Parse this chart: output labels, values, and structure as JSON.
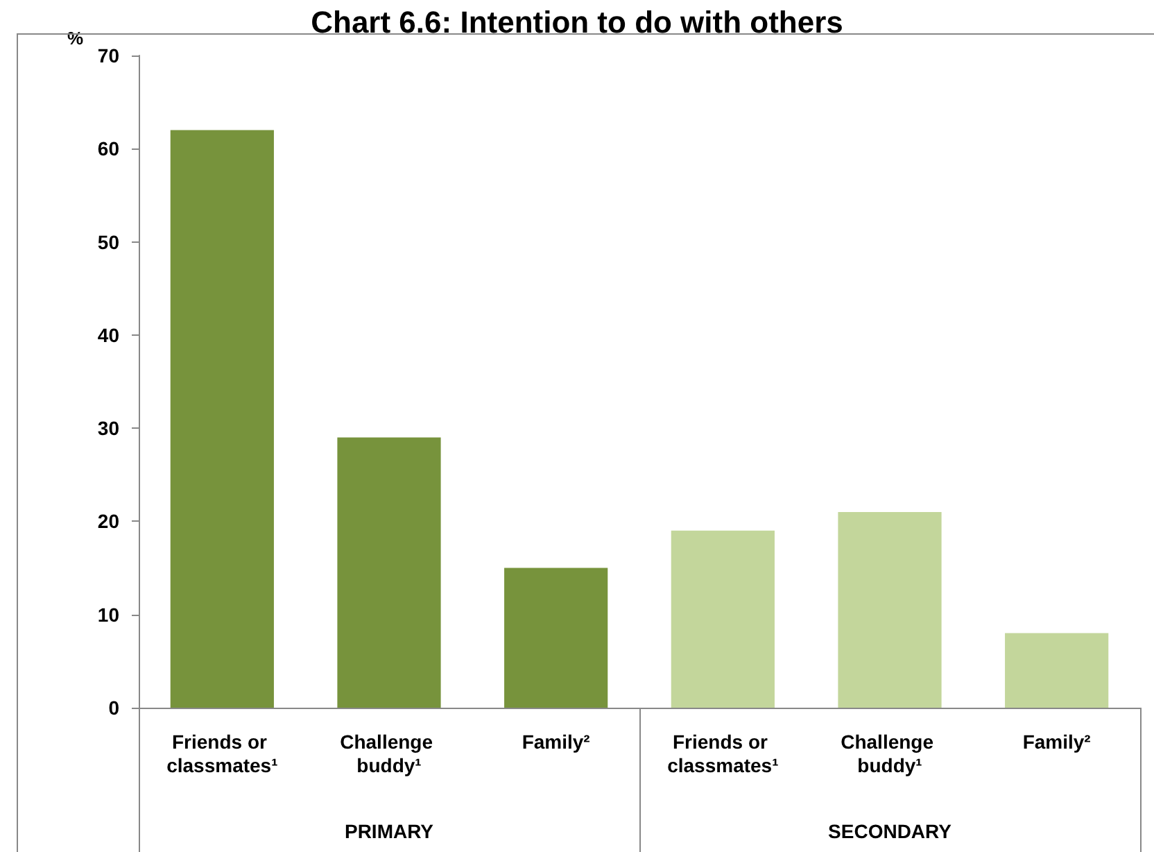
{
  "chart_data": {
    "type": "bar",
    "title": "Chart 6.6: Intention to do with others",
    "ylabel": "%",
    "categories": [
      "Friends or classmates¹",
      "Challenge buddy¹",
      "Family²",
      "Friends or classmates¹",
      "Challenge buddy¹",
      "Family²"
    ],
    "values": [
      62,
      29,
      15,
      19,
      21,
      8
    ],
    "colors": [
      "#77933c",
      "#77933c",
      "#77933c",
      "#c3d69b",
      "#c3d69b",
      "#c3d69b"
    ],
    "ylim": [
      0,
      70
    ],
    "yticks": [
      0,
      10,
      20,
      30,
      40,
      50,
      60,
      70
    ],
    "grid": false,
    "annotations": [
      "PRIMARY",
      "SECONDARY"
    ]
  }
}
